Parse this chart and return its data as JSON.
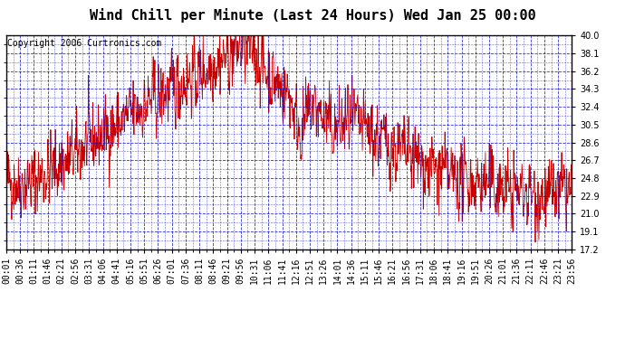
{
  "title": "Wind Chill per Minute (Last 24 Hours) Wed Jan 25 00:00",
  "copyright": "Copyright 2006 Curtronics.com",
  "y_min": 17.2,
  "y_max": 40.0,
  "y_ticks": [
    40.0,
    38.1,
    36.2,
    34.3,
    32.4,
    30.5,
    28.6,
    26.7,
    24.8,
    22.9,
    21.0,
    19.1,
    17.2
  ],
  "x_labels": [
    "00:01",
    "00:36",
    "01:11",
    "01:46",
    "02:21",
    "02:56",
    "03:31",
    "04:06",
    "04:41",
    "05:16",
    "05:51",
    "06:26",
    "07:01",
    "07:36",
    "08:11",
    "08:46",
    "09:21",
    "09:56",
    "10:31",
    "11:06",
    "11:41",
    "12:16",
    "12:51",
    "13:26",
    "14:01",
    "14:36",
    "15:11",
    "15:46",
    "16:21",
    "16:56",
    "17:31",
    "18:06",
    "18:41",
    "19:16",
    "19:51",
    "20:26",
    "21:01",
    "21:36",
    "22:11",
    "22:46",
    "23:21",
    "23:56"
  ],
  "line_color": "#cc0000",
  "background_color": "#ffffff",
  "grid_color": "#0000cc",
  "border_color": "#000000",
  "title_fontsize": 11,
  "copyright_fontsize": 7,
  "tick_fontsize": 7,
  "seed": 42
}
